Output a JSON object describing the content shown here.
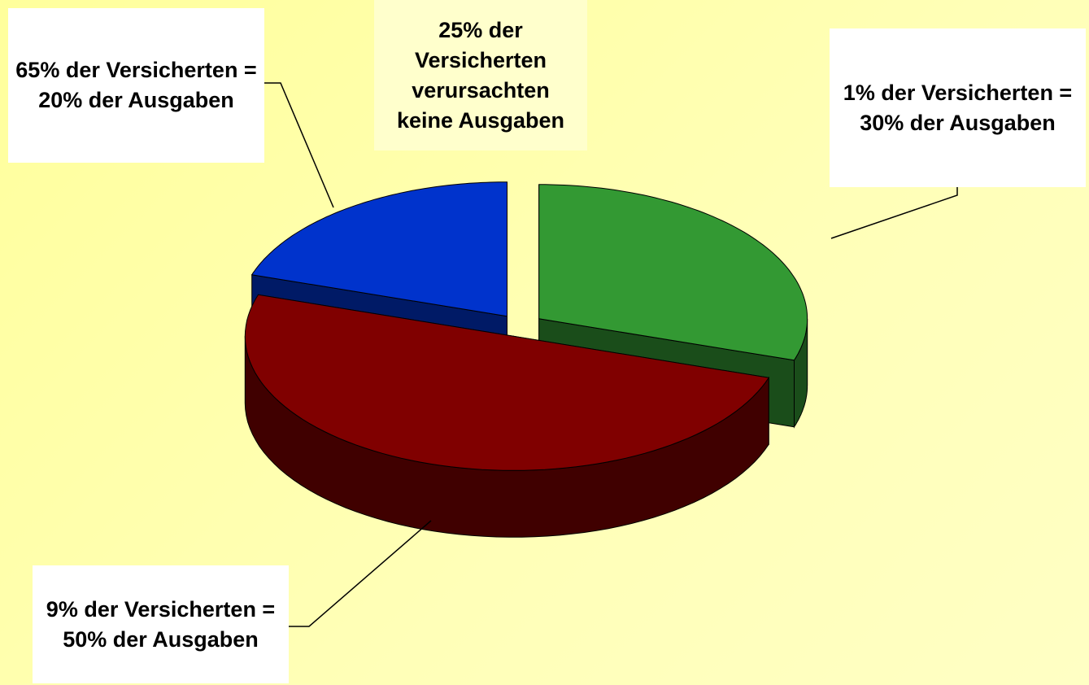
{
  "chart_data": {
    "type": "pie",
    "categories": [
      "1% der Versicherten = 30% der Ausgaben",
      "9% der Versicherten = 50% der Ausgaben",
      "65% der Versicherten = 20% der Ausgaben"
    ],
    "values": [
      30,
      50,
      20
    ],
    "colors": [
      "#339933",
      "#800000",
      "#0033cc"
    ],
    "annotation": "25% der Versicherten verursachten keine Ausgaben"
  }
}
